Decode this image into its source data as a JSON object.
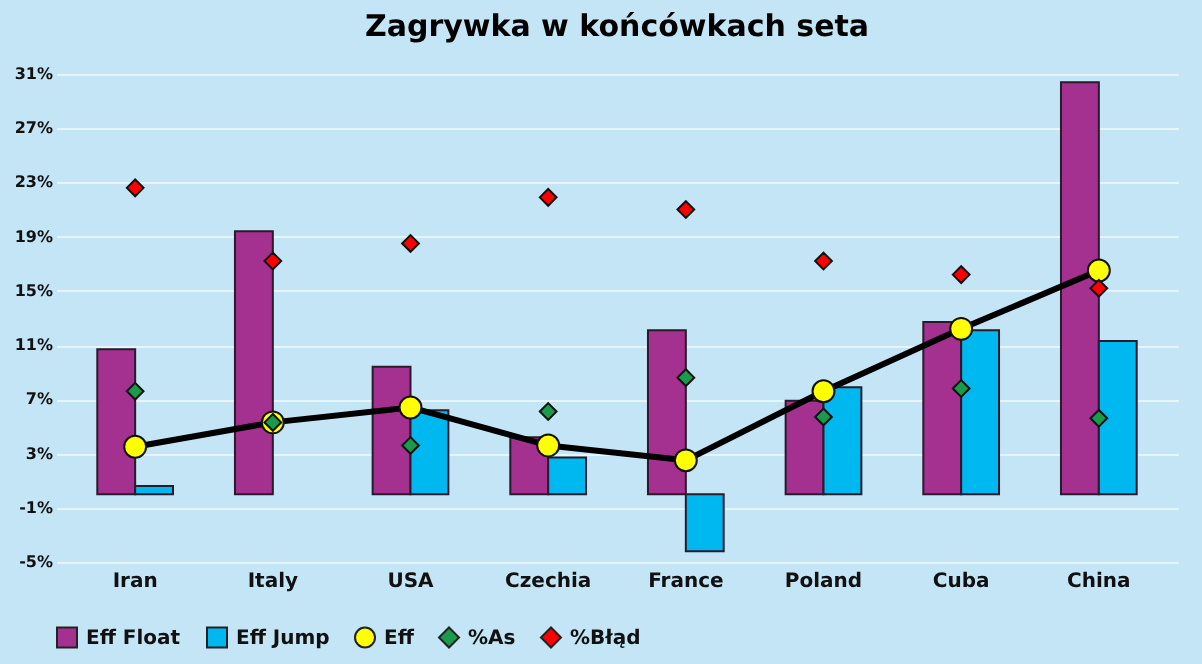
{
  "chart_data": {
    "type": "bar",
    "title": "Zagrywka w końcówkach seta",
    "categories": [
      "Iran",
      "Italy",
      "USA",
      "Czechia",
      "France",
      "Poland",
      "Cuba",
      "China"
    ],
    "series": [
      {
        "name": "Eff Float",
        "color": "#a4308f",
        "values": [
          10.7,
          19.4,
          9.4,
          4.2,
          12.1,
          6.9,
          12.7,
          30.4
        ]
      },
      {
        "name": "Eff Jump",
        "color": "#00b8f0",
        "values": [
          0.6,
          null,
          6.2,
          2.7,
          -4.2,
          7.9,
          12.1,
          11.3
        ]
      },
      {
        "name": "Eff",
        "type": "line",
        "color": "#ffff00",
        "marker": "circle",
        "values": [
          3.5,
          5.3,
          6.4,
          3.6,
          2.5,
          7.6,
          12.2,
          16.5
        ]
      },
      {
        "name": "%As",
        "type": "scatter",
        "color": "#1a9a4a",
        "marker": "diamond",
        "values": [
          7.6,
          5.3,
          3.6,
          6.1,
          8.6,
          5.7,
          7.8,
          5.6
        ]
      },
      {
        "name": "%Błąd",
        "type": "scatter",
        "color": "#ff0000",
        "marker": "diamond",
        "values": [
          22.6,
          17.2,
          18.5,
          21.9,
          21.0,
          17.2,
          16.2,
          15.2
        ]
      }
    ],
    "ylim": [
      -5,
      31
    ],
    "yticks": [
      {
        "value": -5,
        "label": "-5%"
      },
      {
        "value": -1,
        "label": "-1%"
      },
      {
        "value": 3,
        "label": "3%"
      },
      {
        "value": 7,
        "label": "7%"
      },
      {
        "value": 11,
        "label": "11%"
      },
      {
        "value": 15,
        "label": "15%"
      },
      {
        "value": 19,
        "label": "19%"
      },
      {
        "value": 23,
        "label": "23%"
      },
      {
        "value": 27,
        "label": "27%"
      },
      {
        "value": 31,
        "label": "31%"
      }
    ],
    "grid": "y",
    "legend": "bottom"
  }
}
